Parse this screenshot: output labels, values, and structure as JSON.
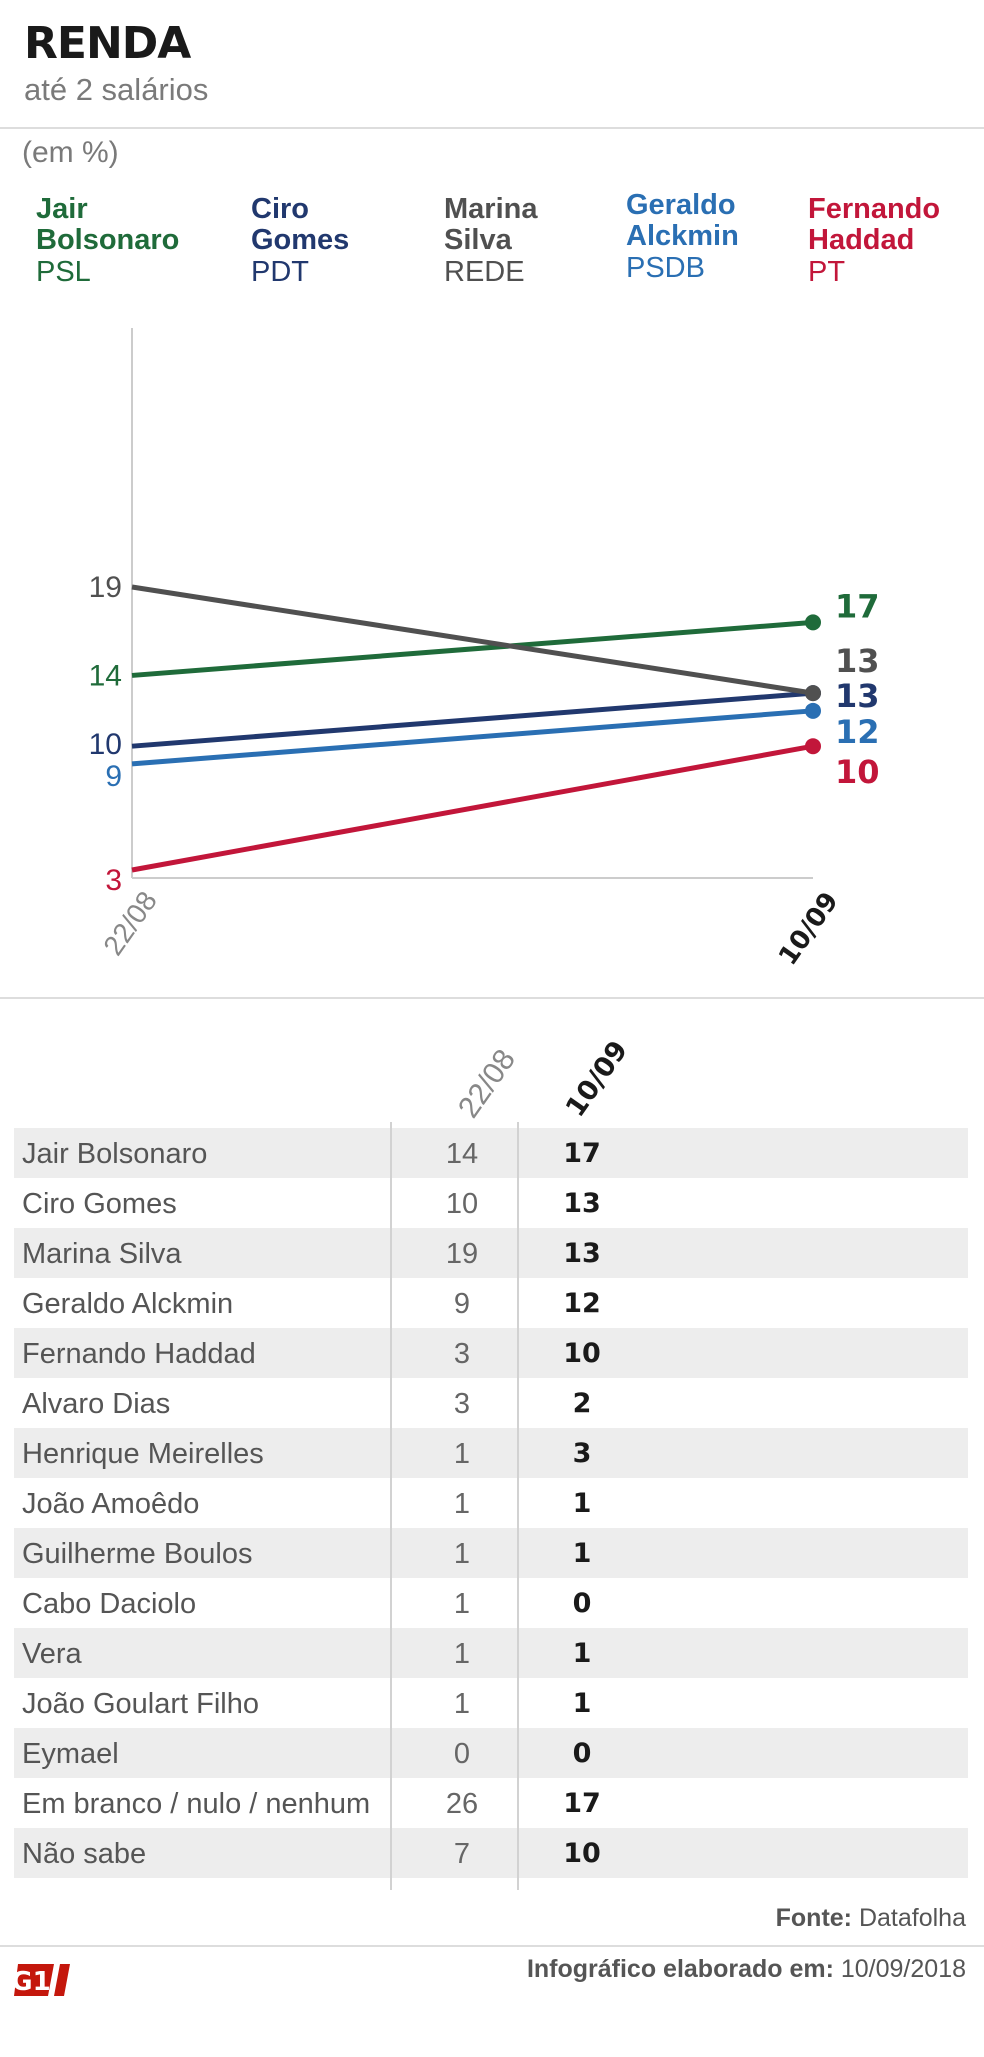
{
  "header": {
    "title": "RENDA",
    "subtitle": "até 2 salários",
    "unit": "(em %)"
  },
  "legend": [
    {
      "name": "Jair Bolsonaro",
      "party": "PSL",
      "color": "#1f6b3a"
    },
    {
      "name": "Ciro Gomes",
      "party": "PDT",
      "color": "#21386e"
    },
    {
      "name": "Marina Silva",
      "party": "REDE",
      "color": "#505050"
    },
    {
      "name": "Geraldo Alckmin",
      "party": "PSDB",
      "color": "#2a6fb3"
    },
    {
      "name": "Fernando Haddad",
      "party": "PT",
      "color": "#c2163a"
    }
  ],
  "chart_data": {
    "type": "line",
    "x": [
      "22/08",
      "10/09"
    ],
    "series": [
      {
        "name": "Jair Bolsonaro",
        "values": [
          14,
          17
        ],
        "color": "#1f6b3a"
      },
      {
        "name": "Ciro Gomes",
        "values": [
          10,
          13
        ],
        "color": "#21386e"
      },
      {
        "name": "Marina Silva",
        "values": [
          19,
          13
        ],
        "color": "#505050"
      },
      {
        "name": "Geraldo Alckmin",
        "values": [
          9,
          12
        ],
        "color": "#2a6fb3"
      },
      {
        "name": "Fernando Haddad",
        "values": [
          3,
          10
        ],
        "color": "#c2163a"
      }
    ],
    "title": "RENDA",
    "subtitle": "até 2 salários",
    "ylabel": "(em %)"
  },
  "table": {
    "col1": "22/08",
    "col2": "10/09",
    "rows": [
      {
        "name": "Jair Bolsonaro",
        "v1": "14",
        "v2": "17"
      },
      {
        "name": "Ciro Gomes",
        "v1": "10",
        "v2": "13"
      },
      {
        "name": "Marina Silva",
        "v1": "19",
        "v2": "13"
      },
      {
        "name": "Geraldo Alckmin",
        "v1": "9",
        "v2": "12"
      },
      {
        "name": "Fernando Haddad",
        "v1": "3",
        "v2": "10"
      },
      {
        "name": "Alvaro Dias",
        "v1": "3",
        "v2": "2"
      },
      {
        "name": "Henrique Meirelles",
        "v1": "1",
        "v2": "3"
      },
      {
        "name": "João Amoêdo",
        "v1": "1",
        "v2": "1"
      },
      {
        "name": "Guilherme Boulos",
        "v1": "1",
        "v2": "1"
      },
      {
        "name": "Cabo Daciolo",
        "v1": "1",
        "v2": "0"
      },
      {
        "name": "Vera",
        "v1": "1",
        "v2": "1"
      },
      {
        "name": "João Goulart Filho",
        "v1": "1",
        "v2": "1"
      },
      {
        "name": "Eymael",
        "v1": "0",
        "v2": "0"
      },
      {
        "name": "Em branco / nulo / nenhum",
        "v1": "26",
        "v2": "17"
      },
      {
        "name": "Não sabe",
        "v1": "7",
        "v2": "10"
      }
    ]
  },
  "footer": {
    "source_label": "Fonte:",
    "source": "Datafolha",
    "logo_text": "G1",
    "credit_label": "Infográfico elaborado em:",
    "credit_date": "10/09/2018"
  }
}
